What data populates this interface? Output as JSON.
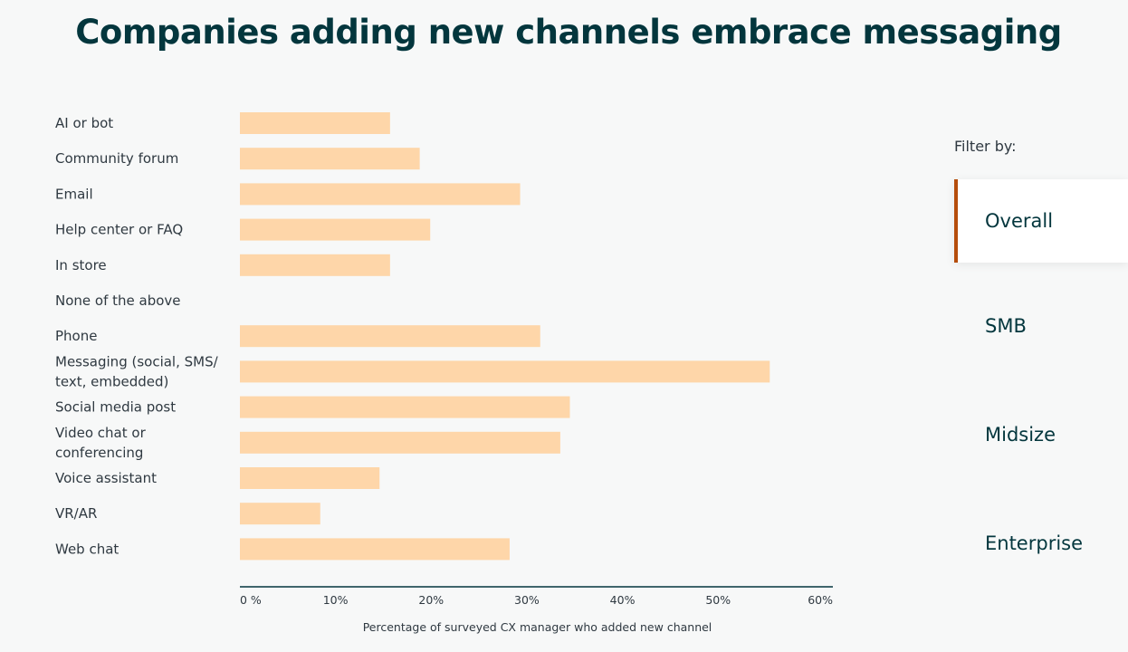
{
  "title": "Companies adding new channels embrace messaging",
  "filter": {
    "heading": "Filter by:",
    "options": [
      "Overall",
      "SMB",
      "Midsize",
      "Enterprise"
    ],
    "selected": "Overall"
  },
  "colors": {
    "bar": "#fed6a9",
    "axis": "#03363d",
    "active_marker": "#b54d0b"
  },
  "chart_data": {
    "type": "bar",
    "orientation": "horizontal",
    "categories": [
      "AI or bot",
      "Community forum",
      "Email",
      "Help center or FAQ",
      "In store",
      "None of the above",
      "Phone",
      "Messaging (social, SMS/ text, embedded)",
      "Social media post",
      "Video chat or conferencing",
      "Voice assistant",
      "VR/AR",
      "Web chat"
    ],
    "category_lines": [
      [
        "AI or bot"
      ],
      [
        "Community forum"
      ],
      [
        "Email"
      ],
      [
        "Help center or FAQ"
      ],
      [
        "In store"
      ],
      [
        "None of the above"
      ],
      [
        "Phone"
      ],
      [
        "Messaging (social, SMS/",
        "text, embedded)"
      ],
      [
        "Social media post"
      ],
      [
        "Video chat or",
        "conferencing"
      ],
      [
        "Voice assistant"
      ],
      [
        "VR/AR"
      ],
      [
        "Web chat"
      ]
    ],
    "values": [
      15.7,
      18.8,
      29.3,
      19.9,
      15.7,
      0,
      31.4,
      55.4,
      34.5,
      33.5,
      14.6,
      8.4,
      28.2
    ],
    "xlim": [
      0,
      62
    ],
    "ticks": [
      0,
      10,
      20,
      30,
      40,
      50,
      60
    ],
    "tick_labels": [
      "0 %",
      "10%",
      "20%",
      "30%",
      "40%",
      "50%",
      "60%"
    ],
    "xlabel": "Percentage of surveyed CX manager who added new channel",
    "ylabel": "",
    "grid": false,
    "legend": "none"
  }
}
